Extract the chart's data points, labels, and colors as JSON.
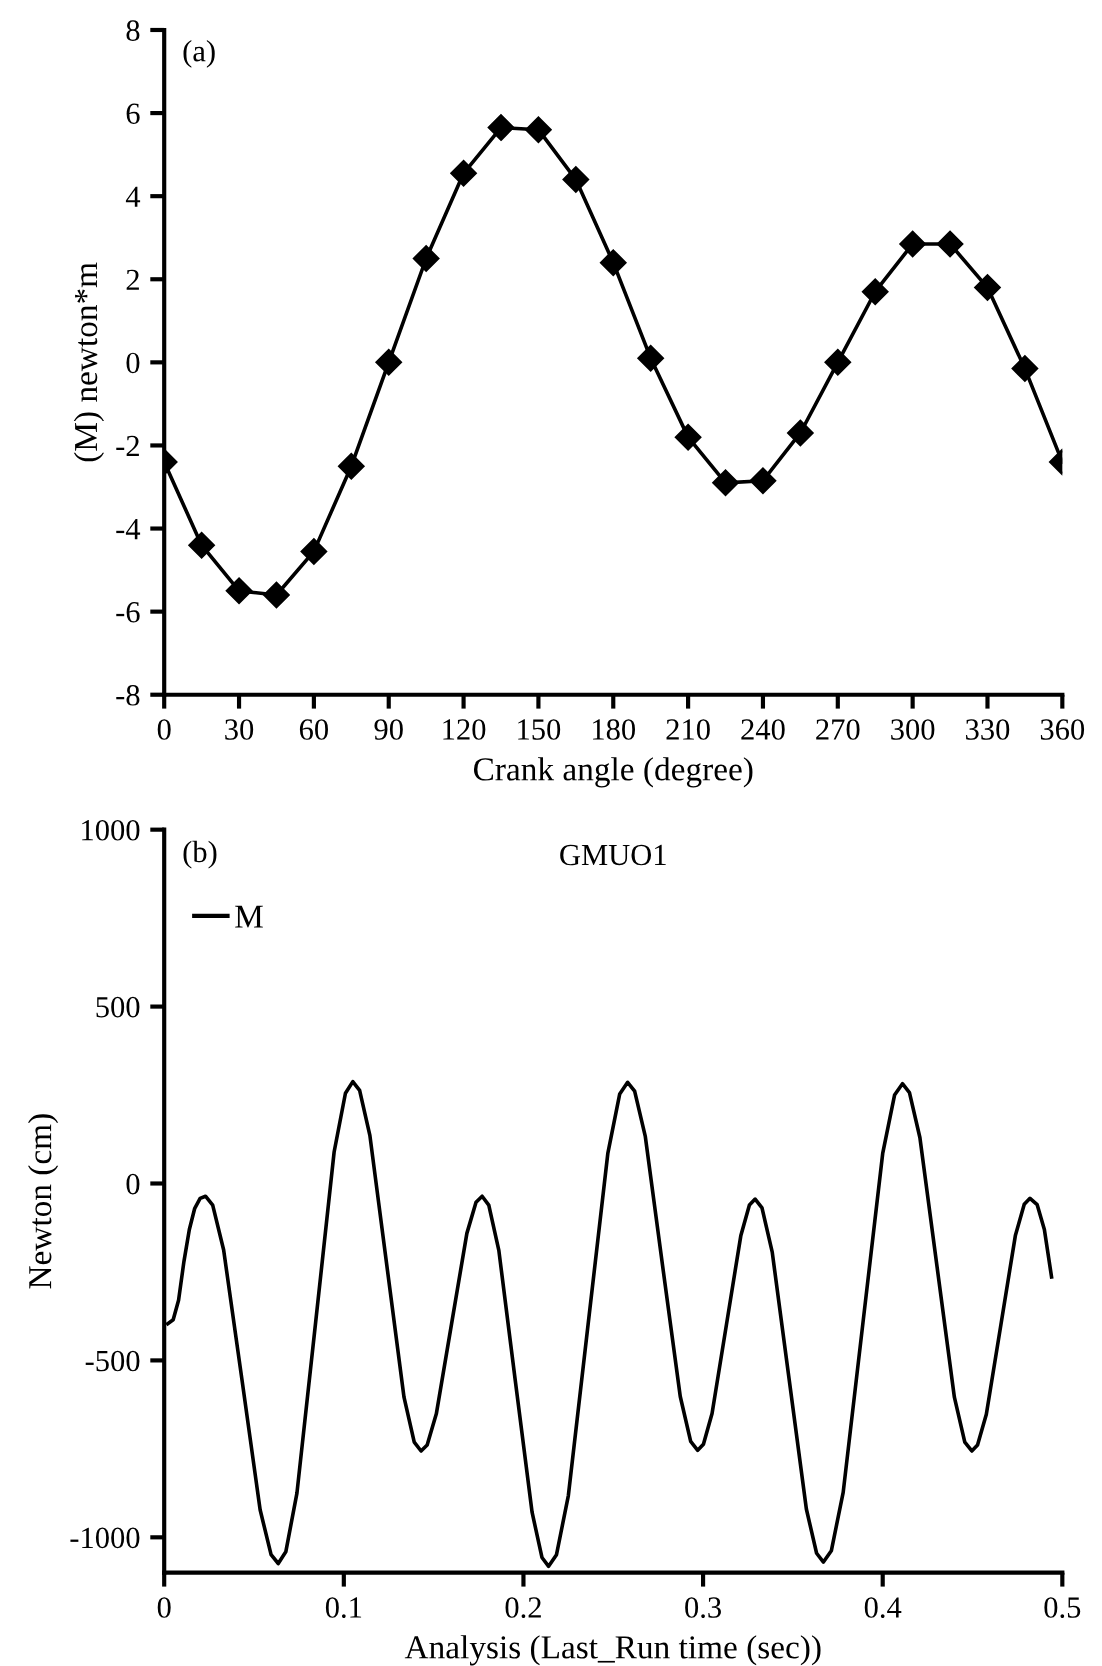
{
  "chart_data": [
    {
      "type": "line",
      "xlabel": "Crank angle (degree)",
      "ylabel": "(M) newton*m",
      "annotations": [
        "(a)"
      ],
      "x": [
        0,
        15,
        30,
        45,
        60,
        75,
        90,
        105,
        120,
        135,
        150,
        165,
        180,
        195,
        210,
        225,
        240,
        255,
        270,
        285,
        300,
        315,
        330,
        345,
        360
      ],
      "series": [
        {
          "color": "#000000",
          "values": [
            -2.4,
            -4.4,
            -5.5,
            -5.6,
            -4.55,
            -2.5,
            0,
            2.5,
            4.55,
            5.65,
            5.6,
            4.4,
            2.4,
            0.1,
            -1.8,
            -2.9,
            -2.85,
            -1.7,
            0,
            1.7,
            2.85,
            2.85,
            1.8,
            -0.15,
            -2.4
          ]
        }
      ],
      "xlim": [
        0,
        360
      ],
      "xticks": [
        0,
        30,
        60,
        90,
        120,
        150,
        180,
        210,
        240,
        270,
        300,
        330,
        360
      ],
      "ylim": [
        -8,
        8
      ],
      "yticks": [
        -8,
        -6,
        -4,
        -2,
        0,
        2,
        4,
        6,
        8
      ],
      "marker": "diamond",
      "grid": false,
      "legend": false
    },
    {
      "type": "line",
      "title": "GMUO1",
      "xlabel": "Analysis (Last_Run time (sec))",
      "ylabel": "Newton (cm)",
      "annotations": [
        "(b)"
      ],
      "x": [
        0.002,
        0.005,
        0.008,
        0.011,
        0.014,
        0.017,
        0.02,
        0.023,
        0.027,
        0.0331,
        0.0433,
        0.0534,
        0.0595,
        0.0635,
        0.0677,
        0.0739,
        0.0843,
        0.0946,
        0.1009,
        0.105,
        0.1088,
        0.1145,
        0.124,
        0.1335,
        0.1392,
        0.143,
        0.1464,
        0.1515,
        0.16,
        0.1685,
        0.1736,
        0.177,
        0.1807,
        0.1863,
        0.1955,
        0.2048,
        0.2103,
        0.214,
        0.2184,
        0.225,
        0.236,
        0.247,
        0.2536,
        0.258,
        0.2619,
        0.2678,
        0.2775,
        0.2873,
        0.2931,
        0.297,
        0.3002,
        0.305,
        0.313,
        0.321,
        0.3258,
        0.329,
        0.3328,
        0.3385,
        0.348,
        0.3575,
        0.3632,
        0.367,
        0.3714,
        0.378,
        0.389,
        0.4,
        0.4066,
        0.411,
        0.4149,
        0.4207,
        0.4303,
        0.4399,
        0.4457,
        0.4496,
        0.4528,
        0.4577,
        0.4658,
        0.4739,
        0.4788,
        0.482,
        0.486,
        0.49,
        0.494
      ],
      "series": [
        {
          "name": "M",
          "color": "#000000",
          "values": [
            -396,
            -385,
            -330,
            -220,
            -130,
            -70,
            -42,
            -36,
            -61,
            -188,
            -555,
            -922,
            -1049,
            -1074,
            -1041,
            -875,
            -393,
            89,
            255,
            288,
            263,
            136,
            -234,
            -604,
            -731,
            -756,
            -739,
            -651,
            -396,
            -141,
            -53,
            -36,
            -61,
            -189,
            -559,
            -929,
            -1057,
            -1082,
            -1049,
            -882,
            -398,
            86,
            253,
            286,
            261,
            134,
            -234,
            -602,
            -729,
            -754,
            -737,
            -650,
            -399,
            -148,
            -61,
            -44,
            -69,
            -194,
            -557,
            -920,
            -1045,
            -1070,
            -1038,
            -873,
            -394,
            85,
            250,
            282,
            257,
            130,
            -237,
            -604,
            -731,
            -756,
            -739,
            -652,
            -399,
            -146,
            -59,
            -42,
            -60,
            -130,
            -264
          ]
        }
      ],
      "xlim": [
        0,
        0.5
      ],
      "xticks": [
        0,
        0.1,
        0.2,
        0.3,
        0.4,
        0.5
      ],
      "ylim": [
        -1100,
        1000
      ],
      "yticks": [
        -1000,
        -500,
        0,
        500,
        1000
      ],
      "marker": "none",
      "grid": false,
      "legend": "top left"
    }
  ]
}
